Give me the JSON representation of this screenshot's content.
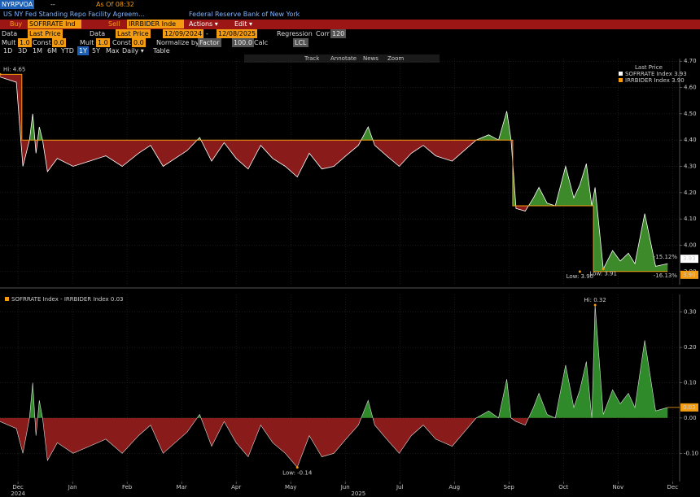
{
  "ui": {
    "ticker": "NYRPVOA",
    "dash": "--",
    "as_of": "As Of 08:32",
    "title": "US NY Fed Standing Repo Facility Agreem...",
    "source": "Federal Reserve Bank of New York",
    "buy": "Buy",
    "buy_ticker": "SOFRRATE Ind",
    "sell": "Sell",
    "sell_ticker": "IRRBIDER Inde",
    "actions": "Actions ▾",
    "edit": "Edit ▾",
    "data_row": [
      "Data",
      "Last Price",
      "Data",
      "Last Price",
      "12/09/2024",
      "-",
      "12/08/2025",
      "Regression",
      "Corr",
      "120"
    ],
    "mult_row": [
      "Mult",
      "1.0",
      "Const",
      "0.0",
      "Mult",
      "1.0",
      "Const",
      "0.0",
      "Normalize by",
      "Factor",
      "100.0",
      "Calc",
      "LCL"
    ],
    "periods": [
      "1D",
      "3D",
      "1M",
      "6M",
      "YTD",
      "1Y",
      "5Y",
      "Max",
      "Daily ▾",
      "Table"
    ],
    "tools": [
      "Track",
      "Annotate",
      "News",
      "Zoom"
    ]
  },
  "chart_data": [
    {
      "type": "line",
      "legend_title": "Last Price",
      "xlim": [
        -0.33,
        12.13
      ],
      "ylim": [
        3.85,
        4.71
      ],
      "yticks": [
        {
          "value": 4.7,
          "label": "4.70"
        },
        {
          "value": 4.6,
          "label": "4.60"
        },
        {
          "value": 4.5,
          "label": "4.50"
        },
        {
          "value": 4.4,
          "label": "4.40"
        },
        {
          "value": 4.3,
          "label": "4.30"
        },
        {
          "value": 4.2,
          "label": "4.20"
        },
        {
          "value": 4.1,
          "label": "4.10"
        },
        {
          "value": 4.0,
          "label": "4.00"
        },
        {
          "value": 3.9,
          "label": "3.90"
        }
      ],
      "fill_colors": {
        "above": "#3d8a2a",
        "below": "#8a1b1b"
      },
      "series": [
        {
          "name": "SOFRRATE Index",
          "legend_value": "3.93",
          "color": "#ffffff",
          "last_label": "3.93",
          "change_label": "-15.12%",
          "x": [
            -0.33,
            -0.03,
            0.09,
            0.21,
            0.27,
            0.33,
            0.39,
            0.45,
            0.54,
            0.72,
            1.01,
            1.31,
            1.61,
            1.91,
            2.21,
            2.43,
            2.66,
            2.88,
            3.1,
            3.33,
            3.55,
            3.78,
            4.0,
            4.22,
            4.45,
            4.67,
            4.9,
            5.12,
            5.34,
            5.57,
            5.79,
            6.01,
            6.24,
            6.42,
            6.54,
            6.76,
            6.99,
            7.21,
            7.43,
            7.66,
            7.96,
            8.18,
            8.4,
            8.63,
            8.81,
            8.96,
            9.04,
            9.13,
            9.3,
            9.45,
            9.55,
            9.7,
            9.85,
            10.04,
            10.19,
            10.3,
            10.42,
            10.52,
            10.58,
            10.73,
            10.9,
            11.04,
            11.19,
            11.31,
            11.49,
            11.69,
            11.91
          ],
          "values": [
            4.64,
            4.62,
            4.3,
            4.4,
            4.5,
            4.35,
            4.45,
            4.4,
            4.28,
            4.33,
            4.3,
            4.32,
            4.34,
            4.3,
            4.35,
            4.38,
            4.3,
            4.33,
            4.36,
            4.41,
            4.32,
            4.39,
            4.33,
            4.29,
            4.38,
            4.33,
            4.3,
            4.26,
            4.35,
            4.29,
            4.3,
            4.34,
            4.38,
            4.45,
            4.38,
            4.34,
            4.3,
            4.35,
            4.38,
            4.34,
            4.32,
            4.36,
            4.4,
            4.42,
            4.4,
            4.51,
            4.4,
            4.14,
            4.13,
            4.18,
            4.22,
            4.16,
            4.15,
            4.3,
            4.18,
            4.23,
            4.31,
            4.15,
            4.22,
            3.91,
            3.98,
            3.94,
            3.97,
            3.93,
            4.12,
            3.92,
            3.93
          ]
        },
        {
          "name": "IRRBIDER Index",
          "legend_value": "3.90",
          "color": "#f39c12",
          "last_label": "3.90",
          "change_label": "-16.13%",
          "x": [
            -0.33,
            0.07,
            0.07,
            9.07,
            9.07,
            10.55,
            10.55,
            11.91
          ],
          "values": [
            4.65,
            4.65,
            4.4,
            4.4,
            4.15,
            4.15,
            3.9,
            3.9
          ]
        }
      ],
      "annotations": [
        {
          "label": "Hi: 4.65",
          "x": -0.33,
          "y": 4.65
        },
        {
          "label": "Low: 3.90",
          "x": 10.3,
          "y": 3.9
        },
        {
          "label": "Low: 3.91",
          "x": 10.73,
          "y": 3.91
        }
      ]
    },
    {
      "type": "area",
      "title": "SOFRRATE Index - IRRBIDER Index",
      "legend_value": "0.03",
      "color": "#f39c12",
      "line_color": "#dddddd",
      "last_label": "0.03",
      "fill_colors": {
        "above": "#2f8a2a",
        "below": "#8a1b1b"
      },
      "xlim": [
        -0.33,
        12.13
      ],
      "ylim": [
        -0.18,
        0.35
      ],
      "yticks": [
        {
          "value": 0.3,
          "label": "0.30"
        },
        {
          "value": 0.2,
          "label": "0.20"
        },
        {
          "value": 0.1,
          "label": "0.10"
        },
        {
          "value": 0,
          "label": "0.00"
        },
        {
          "value": -0.1,
          "label": "-0.10"
        }
      ],
      "xticks": [
        {
          "value": 0,
          "label": "Dec"
        },
        {
          "value": 1,
          "label": "Jan"
        },
        {
          "value": 2,
          "label": "Feb"
        },
        {
          "value": 3,
          "label": "Mar"
        },
        {
          "value": 4,
          "label": "Apr"
        },
        {
          "value": 5,
          "label": "May"
        },
        {
          "value": 6,
          "label": "Jun"
        },
        {
          "value": 7,
          "label": "Jul"
        },
        {
          "value": 8,
          "label": "Aug"
        },
        {
          "value": 9,
          "label": "Sep"
        },
        {
          "value": 10,
          "label": "Oct"
        },
        {
          "value": 11,
          "label": "Nov"
        },
        {
          "value": 12,
          "label": "Dec"
        }
      ],
      "year_labels": [
        {
          "value": 0,
          "label": "2024"
        },
        {
          "value": 6.24,
          "label": "2025"
        }
      ],
      "x": [
        -0.33,
        -0.03,
        0.09,
        0.21,
        0.27,
        0.33,
        0.39,
        0.45,
        0.54,
        0.72,
        1.01,
        1.31,
        1.61,
        1.91,
        2.21,
        2.43,
        2.66,
        2.88,
        3.1,
        3.33,
        3.55,
        3.78,
        4.0,
        4.22,
        4.45,
        4.67,
        4.9,
        5.12,
        5.34,
        5.57,
        5.79,
        6.01,
        6.24,
        6.42,
        6.54,
        6.76,
        6.99,
        7.21,
        7.43,
        7.66,
        7.96,
        8.18,
        8.4,
        8.63,
        8.81,
        8.96,
        9.04,
        9.13,
        9.3,
        9.45,
        9.55,
        9.7,
        9.85,
        10.04,
        10.19,
        10.3,
        10.42,
        10.52,
        10.58,
        10.73,
        10.9,
        11.04,
        11.19,
        11.31,
        11.49,
        11.69,
        11.91
      ],
      "values": [
        -0.01,
        -0.03,
        -0.1,
        0,
        0.1,
        -0.05,
        0.05,
        0,
        -0.12,
        -0.07,
        -0.1,
        -0.08,
        -0.06,
        -0.1,
        -0.05,
        -0.02,
        -0.1,
        -0.07,
        -0.04,
        0.01,
        -0.08,
        -0.01,
        -0.07,
        -0.11,
        -0.02,
        -0.07,
        -0.1,
        -0.14,
        -0.05,
        -0.11,
        -0.1,
        -0.06,
        -0.02,
        0.05,
        -0.02,
        -0.06,
        -0.1,
        -0.05,
        -0.02,
        -0.06,
        -0.08,
        -0.04,
        0,
        0.02,
        0,
        0.11,
        0,
        -0.01,
        -0.02,
        0.03,
        0.07,
        0.01,
        0,
        0.15,
        0.03,
        0.08,
        0.16,
        0,
        0.32,
        0.01,
        0.08,
        0.04,
        0.07,
        0.03,
        0.22,
        0.02,
        0.03
      ],
      "annotations": [
        {
          "label": "Hi: 0.32",
          "x": 10.58,
          "y": 0.32
        },
        {
          "label": "Low: -0.14",
          "x": 5.12,
          "y": -0.14
        }
      ]
    }
  ]
}
